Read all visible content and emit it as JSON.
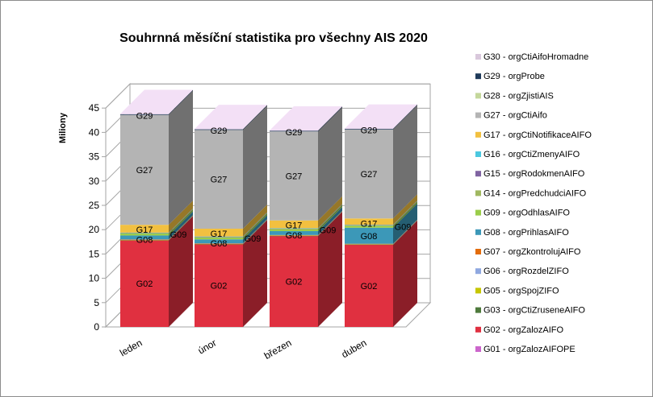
{
  "chart_data": {
    "type": "bar",
    "stacked": true,
    "three_d": true,
    "title": "Souhrnná měsíční statistika pro všechny AIS 2020",
    "ylabel": "Miliony",
    "xlabel": "",
    "ylim": [
      0,
      45
    ],
    "yticks": [
      "0",
      "5",
      "10",
      "15",
      "20",
      "25",
      "30",
      "35",
      "40",
      "45"
    ],
    "grid": true,
    "legend_position": "right",
    "categories": [
      "leden",
      "únor",
      "březen",
      "duben"
    ],
    "series": [
      {
        "code": "G01",
        "name": "G01 - orgZalozAIFOPE",
        "color": "#cc66cc",
        "values": [
          0,
          0,
          0,
          0
        ]
      },
      {
        "code": "G02",
        "name": "G02 - orgZalozAIFO",
        "color": "#e03040",
        "values": [
          17.8,
          17.0,
          18.7,
          16.9
        ]
      },
      {
        "code": "G03",
        "name": "G03 - orgCtiZruseneAIFO",
        "color": "#4e7a3c",
        "values": [
          0.05,
          0.05,
          0.05,
          0.05
        ]
      },
      {
        "code": "G05",
        "name": "G05 - orgSpojZIFO",
        "color": "#c6c600",
        "values": [
          0.05,
          0.05,
          0.05,
          0.05
        ]
      },
      {
        "code": "G06",
        "name": "G06 - orgRozdelZIFO",
        "color": "#8fa8e0",
        "values": [
          0.05,
          0.05,
          0.05,
          0.05
        ]
      },
      {
        "code": "G07",
        "name": "G07 - orgZkontrolujAIFO",
        "color": "#e36c0a",
        "values": [
          0.05,
          0.05,
          0.05,
          0.05
        ]
      },
      {
        "code": "G08",
        "name": "G08 - orgPrihlasAIFO",
        "color": "#3c98b8",
        "values": [
          0.8,
          0.8,
          0.8,
          3.3
        ]
      },
      {
        "code": "G09",
        "name": "G09 - orgOdhlasAIFO",
        "color": "#9acd4a",
        "values": [
          0.4,
          0.4,
          0.4,
          0.4
        ]
      },
      {
        "code": "G14",
        "name": "G14 - orgPredchudciAIFO",
        "color": "#a0b860",
        "values": [
          0.1,
          0.1,
          0.1,
          0.1
        ]
      },
      {
        "code": "G15",
        "name": "G15 - orgRodokmenAIFO",
        "color": "#8064a2",
        "values": [
          0.05,
          0.05,
          0.05,
          0.05
        ]
      },
      {
        "code": "G16",
        "name": "G16 - orgCtiZmenyAIFO",
        "color": "#4bc8e0",
        "values": [
          0.05,
          0.05,
          0.05,
          0.05
        ]
      },
      {
        "code": "G17",
        "name": "G17 - orgCtiNotifikaceAIFO",
        "color": "#f2c040",
        "values": [
          1.6,
          1.6,
          1.6,
          1.3
        ]
      },
      {
        "code": "G27",
        "name": "G27 - orgCtiAifo",
        "color": "#b4b4b4",
        "values": [
          22.6,
          20.3,
          18.3,
          18.3
        ]
      },
      {
        "code": "G28",
        "name": "G28 - orgZjistiAIS",
        "color": "#c4d79b",
        "values": [
          0,
          0,
          0,
          0
        ]
      },
      {
        "code": "G29",
        "name": "G29 - orgProbe",
        "color": "#1f3a5a",
        "values": [
          0.15,
          0.15,
          0.15,
          0.15
        ]
      },
      {
        "code": "G30",
        "name": "G30 - orgCtiAifoHromadne",
        "color": "#d9c8dc",
        "values": [
          0.05,
          0.05,
          0.05,
          0.05
        ]
      }
    ],
    "segment_labels": [
      "G02",
      "G08",
      "G09",
      "G17",
      "G27",
      "G29"
    ],
    "legend_order": [
      "G30",
      "G29",
      "G28",
      "G27",
      "G17",
      "G16",
      "G15",
      "G14",
      "G09",
      "G08",
      "G07",
      "G06",
      "G05",
      "G03",
      "G02",
      "G01"
    ]
  }
}
